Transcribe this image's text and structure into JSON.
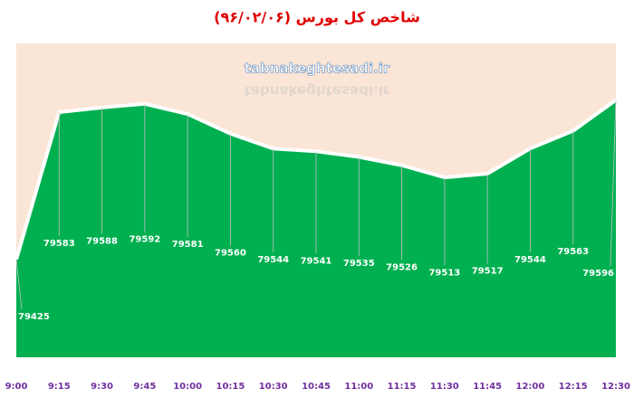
{
  "chart_data": {
    "type": "area",
    "title": "شاخص کل بورس (۹۶/۰۲/۰۶)",
    "watermark": "tabnakeghtesadi.ir",
    "categories": [
      "9:00",
      "9:15",
      "9:30",
      "9:45",
      "10:00",
      "10:15",
      "10:30",
      "10:45",
      "11:00",
      "11:15",
      "11:30",
      "11:45",
      "12:00",
      "12:15",
      "12:30"
    ],
    "values": [
      79425,
      79583,
      79588,
      79592,
      79581,
      79560,
      79544,
      79541,
      79535,
      79526,
      79513,
      79517,
      79544,
      79563,
      79596
    ],
    "color": "#00b050",
    "ylim": [
      79320,
      79650
    ]
  }
}
